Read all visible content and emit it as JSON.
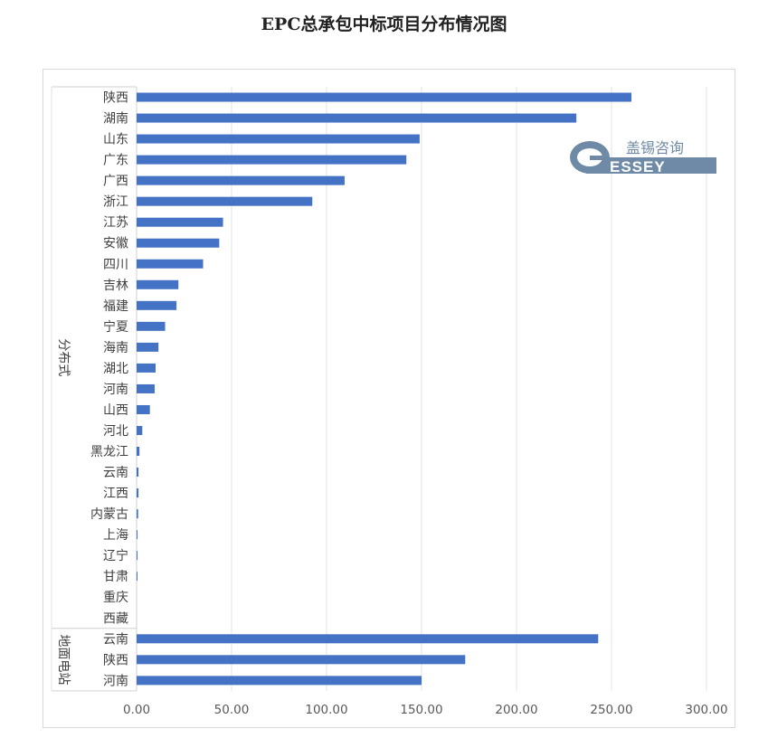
{
  "chart_data": {
    "type": "bar",
    "orientation": "horizontal",
    "title": "EPC总承包中标项目分布情况图",
    "xlabel": "",
    "ylabel": "",
    "xlim": [
      0,
      300
    ],
    "xticks": [
      "0.00",
      "50.00",
      "100.00",
      "150.00",
      "200.00",
      "250.00",
      "300.00"
    ],
    "grid": true,
    "bar_color": "#4472C4",
    "groups": [
      {
        "name": "分布式",
        "categories": [
          "陕西",
          "湖南",
          "山东",
          "广东",
          "广西",
          "浙江",
          "江苏",
          "安徽",
          "四川",
          "吉林",
          "福建",
          "宁夏",
          "海南",
          "湖北",
          "河南",
          "山西",
          "河北",
          "黑龙江",
          "云南",
          "江西",
          "内蒙古",
          "上海",
          "辽宁",
          "甘肃",
          "重庆",
          "西藏"
        ],
        "values": [
          260.5,
          231.5,
          149,
          142,
          109.5,
          92.5,
          45.5,
          43.5,
          35,
          22,
          21,
          15,
          11.5,
          10,
          9.5,
          7,
          3,
          1.5,
          1,
          1,
          0.8,
          0.5,
          0.5,
          0.4,
          0,
          0
        ]
      },
      {
        "name": "地面电站",
        "categories": [
          "云南",
          "陕西",
          "河南"
        ],
        "values": [
          243,
          173,
          150
        ]
      }
    ]
  },
  "logo": {
    "cn": "盖锡咨询",
    "en": "GESSEY"
  }
}
